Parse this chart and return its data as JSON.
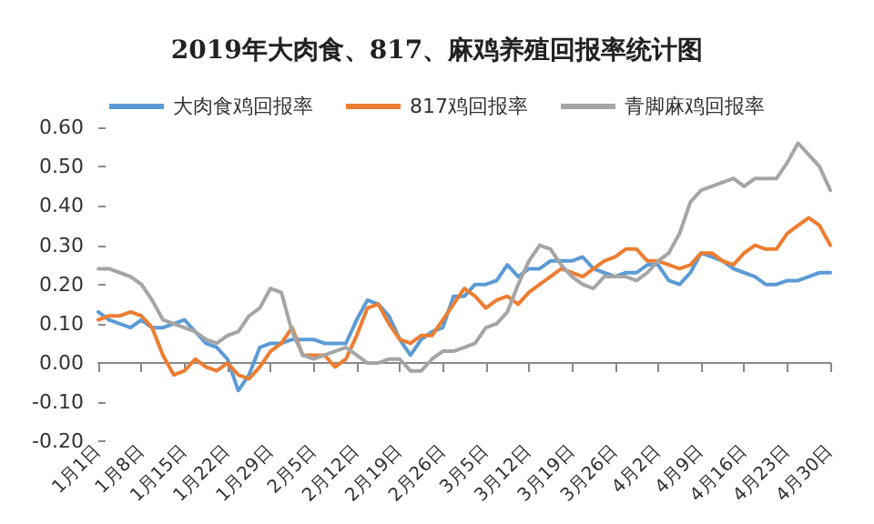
{
  "chart_data": {
    "type": "line",
    "title": "2019年大肉食、817、麻鸡养殖回报率统计图",
    "categories": [
      "1月1日",
      null,
      null,
      null,
      "1月8日",
      null,
      null,
      null,
      "1月15日",
      null,
      null,
      null,
      "1月22日",
      null,
      null,
      null,
      "1月29日",
      null,
      null,
      null,
      "2月5日",
      null,
      null,
      null,
      "2月12日",
      null,
      null,
      null,
      "2月19日",
      null,
      null,
      null,
      "2月26日",
      null,
      null,
      null,
      "3月5日",
      null,
      null,
      null,
      "3月12日",
      null,
      null,
      null,
      "3月19日",
      null,
      null,
      null,
      "3月26日",
      null,
      null,
      null,
      "4月2日",
      null,
      null,
      null,
      "4月9日",
      null,
      null,
      null,
      "4月16日",
      null,
      null,
      null,
      "4月23日",
      null,
      null,
      null,
      "4月30日"
    ],
    "series": [
      {
        "name": "大肉食鸡回报率",
        "color": "#5b9bd5",
        "values": [
          0.13,
          0.11,
          0.1,
          0.09,
          0.11,
          0.09,
          0.09,
          0.1,
          0.11,
          0.08,
          0.05,
          0.04,
          0.01,
          -0.07,
          -0.03,
          0.04,
          0.05,
          0.05,
          0.06,
          0.06,
          0.06,
          0.05,
          0.05,
          0.05,
          0.11,
          0.16,
          0.15,
          0.12,
          0.06,
          0.02,
          0.06,
          0.08,
          0.09,
          0.17,
          0.17,
          0.2,
          0.2,
          0.21,
          0.25,
          0.22,
          0.24,
          0.24,
          0.26,
          0.26,
          0.26,
          0.27,
          0.24,
          0.23,
          0.22,
          0.23,
          0.23,
          0.25,
          0.25,
          0.21,
          0.2,
          0.23,
          0.28,
          0.27,
          0.26,
          0.24,
          0.23,
          0.22,
          0.2,
          0.2,
          0.21,
          0.21,
          0.22,
          0.23,
          0.23
        ]
      },
      {
        "name": "817鸡回报率",
        "color": "#ed7d31",
        "values": [
          0.11,
          0.12,
          0.12,
          0.13,
          0.12,
          0.09,
          0.02,
          -0.03,
          -0.02,
          0.01,
          -0.01,
          -0.02,
          0.0,
          -0.03,
          -0.04,
          -0.01,
          0.03,
          0.05,
          0.09,
          0.02,
          0.02,
          0.02,
          -0.01,
          0.01,
          0.07,
          0.14,
          0.15,
          0.1,
          0.06,
          0.05,
          0.07,
          0.07,
          0.11,
          0.15,
          0.19,
          0.17,
          0.14,
          0.16,
          0.17,
          0.15,
          0.18,
          0.2,
          0.22,
          0.24,
          0.23,
          0.22,
          0.24,
          0.26,
          0.27,
          0.29,
          0.29,
          0.26,
          0.26,
          0.25,
          0.24,
          0.25,
          0.28,
          0.28,
          0.26,
          0.25,
          0.28,
          0.3,
          0.29,
          0.29,
          0.33,
          0.35,
          0.37,
          0.35,
          0.3
        ]
      },
      {
        "name": "青脚麻鸡回报率",
        "color": "#a5a5a5",
        "values": [
          0.24,
          0.24,
          0.23,
          0.22,
          0.2,
          0.16,
          0.11,
          0.1,
          0.09,
          0.08,
          0.06,
          0.05,
          0.07,
          0.08,
          0.12,
          0.14,
          0.19,
          0.18,
          0.08,
          0.02,
          0.01,
          0.02,
          0.03,
          0.04,
          0.02,
          0.0,
          0.0,
          0.01,
          0.01,
          -0.02,
          -0.02,
          0.01,
          0.03,
          0.03,
          0.04,
          0.05,
          0.09,
          0.1,
          0.13,
          0.2,
          0.26,
          0.3,
          0.29,
          0.25,
          0.22,
          0.2,
          0.19,
          0.22,
          0.22,
          0.22,
          0.21,
          0.23,
          0.26,
          0.28,
          0.33,
          0.41,
          0.44,
          0.45,
          0.46,
          0.47,
          0.45,
          0.47,
          0.47,
          0.47,
          0.51,
          0.56,
          0.53,
          0.5,
          0.44
        ]
      }
    ],
    "ylim": [
      -0.2,
      0.6
    ],
    "yticks": [
      {
        "value": -0.2,
        "label": "-0.20"
      },
      {
        "value": -0.1,
        "label": "-0.10"
      },
      {
        "value": 0,
        "label": "0.00"
      },
      {
        "value": 0.1,
        "label": "0.10"
      },
      {
        "value": 0.2,
        "label": "0.20"
      },
      {
        "value": 0.3,
        "label": "0.30"
      },
      {
        "value": 0.4,
        "label": "0.40"
      },
      {
        "value": 0.5,
        "label": "0.50"
      },
      {
        "value": 0.6,
        "label": "0.60"
      }
    ],
    "legend": "top",
    "marker": "none",
    "line_style": "solid"
  }
}
